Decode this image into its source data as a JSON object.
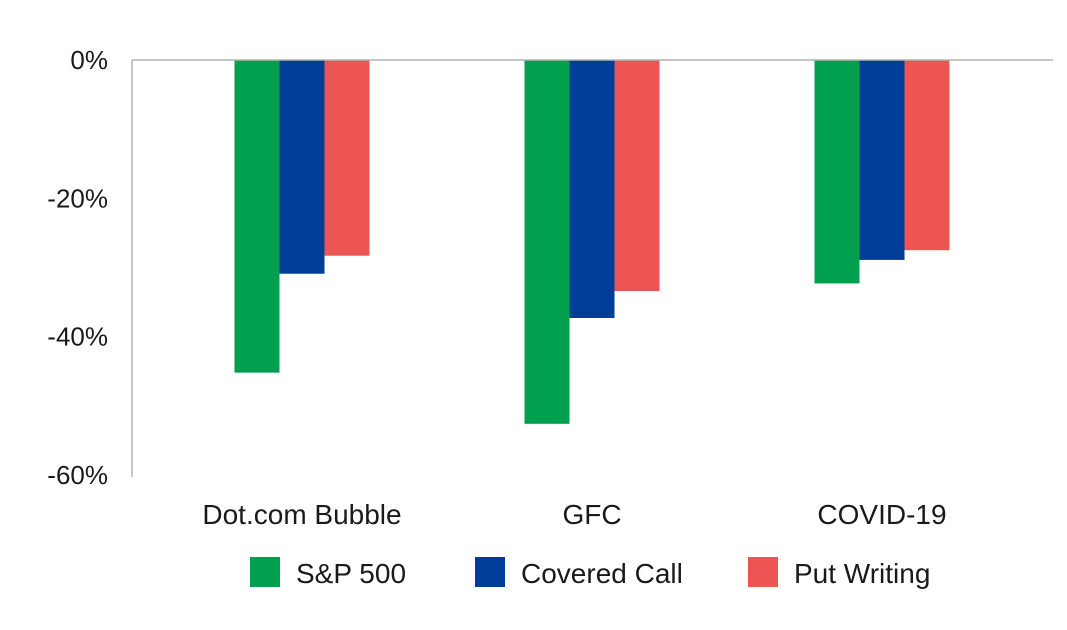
{
  "chart_data": {
    "type": "bar",
    "categories": [
      "Dot.com Bubble",
      "GFC",
      "COVID-19"
    ],
    "series": [
      {
        "name": "S&P 500",
        "color": "#00A04F",
        "values": [
          -45.2,
          -52.6,
          -32.3
        ]
      },
      {
        "name": "Covered Call",
        "color": "#003D99",
        "values": [
          -30.9,
          -37.3,
          -28.9
        ]
      },
      {
        "name": "Put Writing",
        "color": "#EC5553",
        "values": [
          -28.3,
          -33.4,
          -27.5
        ]
      }
    ],
    "ylim": [
      -60,
      0
    ],
    "yticks": [
      0,
      -20,
      -40,
      -60
    ],
    "ytick_labels": [
      "0%",
      "-20%",
      "-40%",
      "-60%"
    ],
    "title": "",
    "xlabel": "",
    "ylabel": "",
    "grid": false,
    "legend_position": "bottom"
  }
}
